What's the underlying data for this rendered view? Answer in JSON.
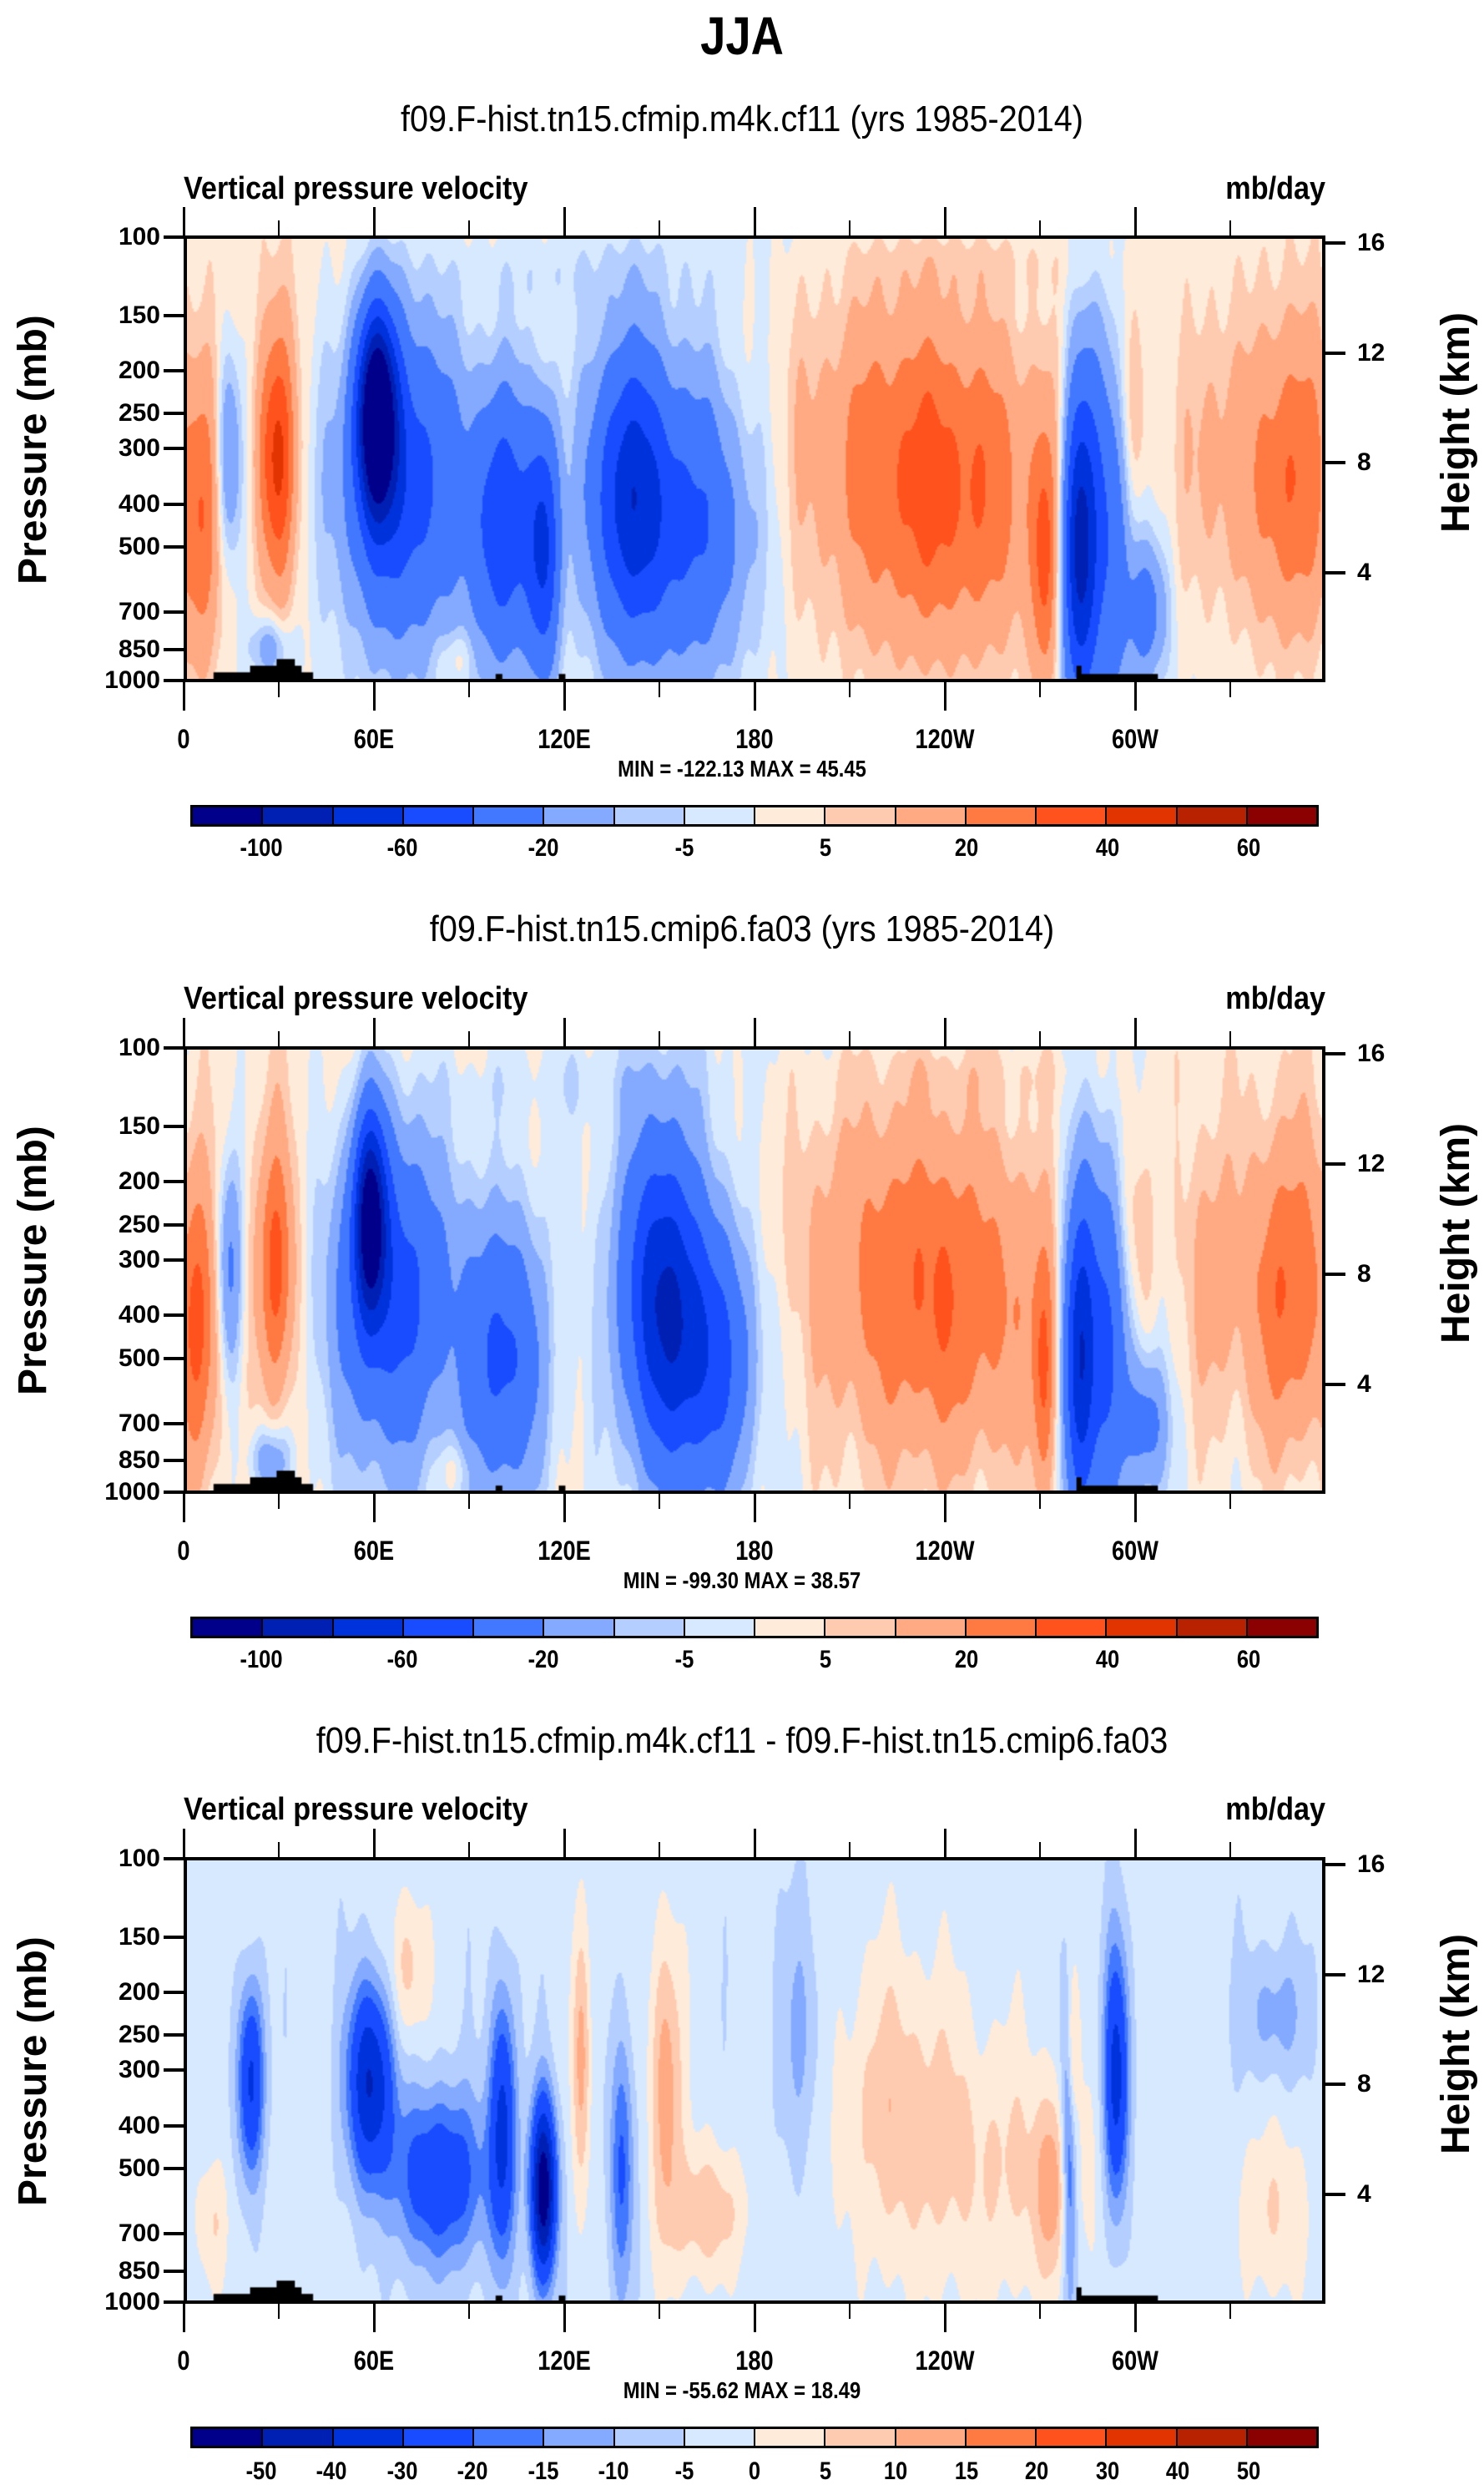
{
  "figure": {
    "title": "JJA"
  },
  "chart_data": [
    {
      "type": "heatmap",
      "kind": "filled-contour longitude-pressure cross section",
      "title": "f09.F-hist.tn15.cfmip.m4k.cf11 (yrs 1985-2014)",
      "left_string": "Vertical pressure velocity",
      "right_string": "mb/day",
      "ylabel": "Pressure (mb)",
      "ylabel_right": "Height (km)",
      "xlabel": "",
      "x_ticks": [
        "0",
        "60E",
        "120E",
        "180",
        "120W",
        "60W"
      ],
      "x_tick_lon": [
        0,
        60,
        120,
        180,
        240,
        300
      ],
      "x_minor_tick_lon": [
        30,
        90,
        150,
        210,
        270,
        330
      ],
      "xlim": [
        0,
        360
      ],
      "y_ticks": [
        100,
        150,
        200,
        250,
        300,
        400,
        500,
        700,
        850,
        1000
      ],
      "ylim": [
        100,
        1000
      ],
      "y_scale": "log",
      "y_right_ticks": [
        16,
        12,
        8,
        4
      ],
      "stats": "MIN = -122.13  MAX =  45.45",
      "min": -122.13,
      "max": 45.45,
      "contour_levels": [
        -100,
        -80,
        -60,
        -40,
        -20,
        -10,
        -5,
        0,
        5,
        10,
        20,
        30,
        40,
        50,
        60
      ],
      "colorbar_labels": [
        "-100",
        "-60",
        "-20",
        "-5",
        "5",
        "20",
        "40",
        "60"
      ],
      "colorbar_label_index": [
        0,
        2,
        4,
        6,
        8,
        10,
        12,
        14
      ],
      "features": [
        {
          "desc": "strong ascent core near 60E upper troposphere",
          "lon": 60,
          "p": 330,
          "value": -120
        },
        {
          "desc": "ascent band 90E-160E",
          "lon": 130,
          "p": 450,
          "value": -70
        },
        {
          "desc": "descent near 30E",
          "lon": 35,
          "p": 400,
          "value": 40
        },
        {
          "desc": "broad descent east Pacific 200-280",
          "lon": 240,
          "p": 450,
          "value": 30
        },
        {
          "desc": "ascent near 80W",
          "lon": 283,
          "p": 600,
          "value": -70
        },
        {
          "desc": "descent Atlantic near 20W",
          "lon": 345,
          "p": 450,
          "value": 28
        }
      ]
    },
    {
      "type": "heatmap",
      "kind": "filled-contour longitude-pressure cross section",
      "title": "f09.F-hist.tn15.cmip6.fa03 (yrs 1985-2014)",
      "left_string": "Vertical pressure velocity",
      "right_string": "mb/day",
      "ylabel": "Pressure (mb)",
      "ylabel_right": "Height (km)",
      "xlabel": "",
      "x_ticks": [
        "0",
        "60E",
        "120E",
        "180",
        "120W",
        "60W"
      ],
      "x_tick_lon": [
        0,
        60,
        120,
        180,
        240,
        300
      ],
      "x_minor_tick_lon": [
        30,
        90,
        150,
        210,
        270,
        330
      ],
      "xlim": [
        0,
        360
      ],
      "y_ticks": [
        100,
        150,
        200,
        250,
        300,
        400,
        500,
        700,
        850,
        1000
      ],
      "ylim": [
        100,
        1000
      ],
      "y_scale": "log",
      "y_right_ticks": [
        16,
        12,
        8,
        4
      ],
      "stats": "MIN = -99.30  MAX =  38.57",
      "min": -99.3,
      "max": 38.57,
      "contour_levels": [
        -100,
        -80,
        -60,
        -40,
        -20,
        -10,
        -5,
        0,
        5,
        10,
        20,
        30,
        40,
        50,
        60
      ],
      "colorbar_labels": [
        "-100",
        "-60",
        "-20",
        "-5",
        "5",
        "20",
        "40",
        "60"
      ],
      "colorbar_label_index": [
        0,
        2,
        4,
        6,
        8,
        10,
        12,
        14
      ],
      "features": [
        {
          "desc": "ascent core near 60E",
          "lon": 60,
          "p": 330,
          "value": -95
        },
        {
          "desc": "ascent band 120E-170E",
          "lon": 150,
          "p": 450,
          "value": -65
        },
        {
          "desc": "descent near 30E",
          "lon": 35,
          "p": 400,
          "value": 35
        },
        {
          "desc": "broad descent east Pacific",
          "lon": 240,
          "p": 450,
          "value": 28
        },
        {
          "desc": "ascent near 80W",
          "lon": 283,
          "p": 650,
          "value": -60
        },
        {
          "desc": "descent Atlantic",
          "lon": 350,
          "p": 450,
          "value": 26
        }
      ]
    },
    {
      "type": "heatmap",
      "kind": "filled-contour longitude-pressure cross section (difference)",
      "title": "f09.F-hist.tn15.cfmip.m4k.cf11 - f09.F-hist.tn15.cmip6.fa03",
      "left_string": "Vertical pressure velocity",
      "right_string": "mb/day",
      "ylabel": "Pressure (mb)",
      "ylabel_right": "Height (km)",
      "xlabel": "",
      "x_ticks": [
        "0",
        "60E",
        "120E",
        "180",
        "120W",
        "60W"
      ],
      "x_tick_lon": [
        0,
        60,
        120,
        180,
        240,
        300
      ],
      "x_minor_tick_lon": [
        30,
        90,
        150,
        210,
        270,
        330
      ],
      "xlim": [
        0,
        360
      ],
      "y_ticks": [
        100,
        150,
        200,
        250,
        300,
        400,
        500,
        700,
        850,
        1000
      ],
      "ylim": [
        100,
        1000
      ],
      "y_scale": "log",
      "y_right_ticks": [
        16,
        12,
        8,
        4
      ],
      "stats": "MIN = -55.62  MAX =  18.49",
      "min": -55.62,
      "max": 18.49,
      "contour_levels": [
        -50,
        -40,
        -30,
        -20,
        -15,
        -10,
        -5,
        0,
        5,
        10,
        15,
        20,
        30,
        40,
        50
      ],
      "colorbar_labels": [
        "-50",
        "-40",
        "-30",
        "-20",
        "-15",
        "-10",
        "-5",
        "0",
        "5",
        "10",
        "15",
        "20",
        "30",
        "40",
        "50"
      ],
      "colorbar_label_index": [
        0,
        1,
        2,
        3,
        4,
        5,
        6,
        7,
        8,
        9,
        10,
        11,
        12,
        13,
        14
      ],
      "features": [
        {
          "desc": "negative anomaly near 20E",
          "lon": 20,
          "p": 380,
          "value": -30
        },
        {
          "desc": "negative anomaly near 60E",
          "lon": 58,
          "p": 420,
          "value": -35
        },
        {
          "desc": "strong negative near 115E low levels",
          "lon": 113,
          "p": 700,
          "value": -55
        },
        {
          "desc": "positive near 150E",
          "lon": 152,
          "p": 500,
          "value": 15
        },
        {
          "desc": "negative near 70W",
          "lon": 295,
          "p": 500,
          "value": -30
        },
        {
          "desc": "positive near 80W",
          "lon": 282,
          "p": 400,
          "value": 15
        }
      ]
    }
  ],
  "colormap": [
    "#00008b",
    "#0020b4",
    "#0032dc",
    "#1a4cff",
    "#4278ff",
    "#83aaff",
    "#b3ceff",
    "#d7e9ff",
    "#ffebd9",
    "#ffcbb0",
    "#ffaa82",
    "#ff7a42",
    "#ff521c",
    "#e23400",
    "#b82200",
    "#8b0000"
  ],
  "land_fill": "#000000"
}
